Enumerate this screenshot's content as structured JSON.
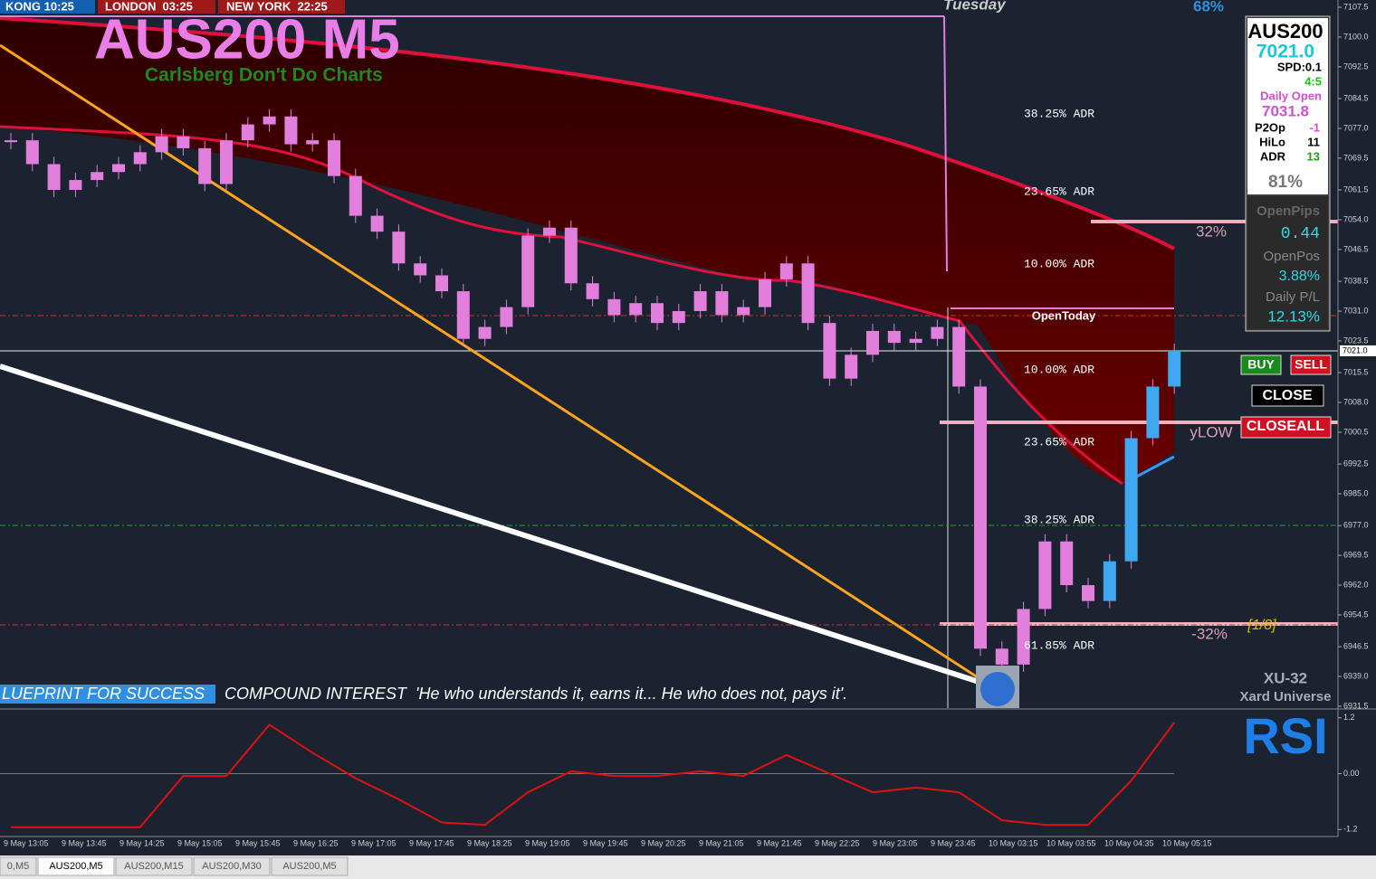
{
  "header": {
    "clocks": [
      "KONG 10:25",
      "LONDON  03:25",
      "NEW YORK  22:25"
    ],
    "day": "Tuesday",
    "top_percent": "68%"
  },
  "title": "AUS200 M5",
  "subtitle": "Carlsberg Don't Do Charts",
  "price_chart": {
    "close": [
      7074,
      7068,
      7061.5,
      7064,
      7066,
      7068,
      7071,
      7075,
      7072,
      7063,
      7074,
      7078,
      7080,
      7073,
      7074,
      7065,
      7055,
      7051,
      7043,
      7040,
      7036,
      7024,
      7027,
      7032,
      7050,
      7052,
      7038,
      7034,
      7030,
      7033,
      7028,
      7031,
      7036,
      7030,
      7032,
      7039,
      7043,
      7028,
      7014,
      7020,
      7026,
      7023,
      7024,
      7027,
      7012,
      6946,
      6942,
      6956,
      6973,
      6962,
      6958,
      6968,
      6999,
      7012,
      7021
    ],
    "ylim": [
      6931.5,
      7107.5
    ],
    "yticks": [
      7107.5,
      {
        "value": 7100,
        "label": "7100.0"
      },
      7092.5,
      7084.5,
      {
        "value": 7077,
        "label": "7077.0"
      },
      7069.5,
      7061.5,
      {
        "value": 7054,
        "label": "7054.0"
      },
      7046.5,
      7038.5,
      {
        "value": 7031,
        "label": "7031.0"
      },
      7023.5,
      7015.5,
      {
        "value": 7008,
        "label": "7008.0"
      },
      7000.5,
      6992.5,
      {
        "value": 6985,
        "label": "6985.0"
      },
      {
        "value": 6977,
        "label": "6977.0"
      },
      6969.5,
      {
        "value": 6962,
        "label": "6962.0"
      },
      6954.5,
      6946.5,
      {
        "value": 6939,
        "label": "6939.0"
      },
      6931.5
    ],
    "current_price": {
      "value": 7021,
      "label": "7021.0"
    },
    "time_labels": [
      "9 May 13:05",
      "9 May 13:45",
      "9 May 14:25",
      "9 May 15:05",
      "9 May 15:45",
      "9 May 16:25",
      "9 May 17:05",
      "9 May 17:45",
      "9 May 18:25",
      "9 May 19:05",
      "9 May 19:45",
      "9 May 20:25",
      "9 May 21:05",
      "9 May 21:45",
      "9 May 22:25",
      "9 May 23:05",
      "9 May 23:45",
      "10 May 03:15",
      "10 May 03:55",
      "10 May 04:35",
      "10 May 05:15"
    ]
  },
  "adr_labels": [
    "38.25% ADR",
    "23.65% ADR",
    "10.00% ADR",
    "10.00% ADR",
    "23.65% ADR",
    "38.25% ADR",
    "61.85% ADR"
  ],
  "levels": {
    "open_today": "OpenToday",
    "upper": "32%",
    "lower": "-32%",
    "ylow": "yLOW",
    "octave": "[1/8]"
  },
  "panel": {
    "symbol": "AUS200",
    "price": "7021.0",
    "spread": "SPD:0.1",
    "ratio": "4:5",
    "daily_open_label": "Daily Open",
    "daily_open": "7031.8",
    "rows": [
      [
        "P2Op",
        "-1"
      ],
      [
        "HiLo",
        "11"
      ],
      [
        "ADR",
        "13"
      ]
    ],
    "percent": "81%",
    "open_pips_label": "OpenPips",
    "open_pips": "0.44",
    "open_pos_label": "OpenPos",
    "open_pos": "3.88%",
    "daily_pl_label": "Daily P/L",
    "daily_pl": "12.13%"
  },
  "buttons": [
    "BUY",
    "SELL",
    "CLOSE",
    "CLOSEALL"
  ],
  "footer": {
    "badge": "LUEPRINT FOR SUCCESS",
    "quote": "COMPOUND INTEREST  'He who understands it, earns it... He who does not, pays it'.",
    "brand": "XU-32",
    "brand_sub": "Xard Universe"
  },
  "rsi": {
    "title": "RSI",
    "ylim": [
      -1.35,
      1.35
    ],
    "yticks": [
      1.2,
      {
        "value": 0,
        "label": "0.00"
      },
      -1.2
    ],
    "values": [
      -1.15,
      -1.15,
      -1.15,
      -1.15,
      -0.05,
      -0.05,
      1.05,
      0.45,
      -0.1,
      -0.55,
      -1.05,
      -1.1,
      -0.4,
      0.05,
      -0.05,
      -0.05,
      0.05,
      -0.05,
      0.4,
      0.0,
      -0.4,
      -0.3,
      -0.4,
      -1.0,
      -1.1,
      -1.1,
      -0.15,
      1.1
    ]
  },
  "tabs": [
    "0,M5",
    "AUS200,M5",
    "AUS200,M15",
    "AUS200,M30",
    "AUS200,M5"
  ]
}
